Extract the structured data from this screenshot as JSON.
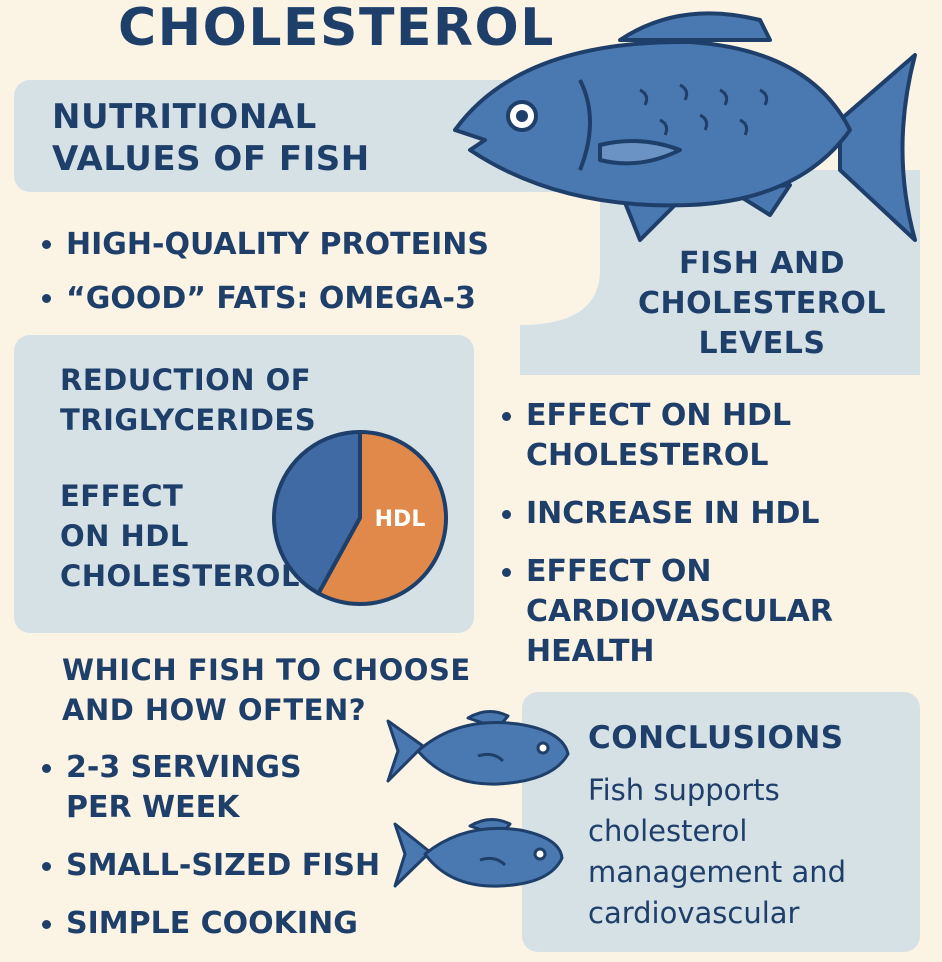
{
  "title": "CHOLESTEROL",
  "nutrition": {
    "heading_lines": [
      "NUTRITIONAL",
      "VALUES OF FISH"
    ],
    "items": [
      "HIGH-QUALITY PROTEINS",
      "“GOOD” FATS: OMEGA-3"
    ]
  },
  "levels": {
    "heading_lines": [
      "FISH AND",
      "CHOLESTEROL",
      "LEVELS"
    ]
  },
  "triglycerides": {
    "heading_lines": [
      "REDUCTION OF",
      "TRIGLYCERIDES"
    ]
  },
  "hdl_effect": {
    "heading_lines": [
      "EFFECT",
      "ON HDL",
      "CHOLESTEROL"
    ]
  },
  "pie": {
    "label": "HDL",
    "hdl_fraction": 0.58,
    "colors": {
      "hdl": "#e0894a",
      "other": "#3f6aa3",
      "outline": "#1f3f6b"
    }
  },
  "effects": {
    "items": [
      [
        "EFFECT ON HDL",
        "CHOLESTEROL"
      ],
      [
        "INCREASE IN HDL"
      ],
      [
        "EFFECT ON",
        "CARDIOVASCULAR",
        "HEALTH"
      ]
    ]
  },
  "choose": {
    "heading_lines": [
      "WHICH FISH TO CHOOSE",
      "AND HOW OFTEN?"
    ],
    "items": [
      [
        "2-3 SERVINGS",
        "PER WEEK"
      ],
      [
        "SMALL-SIZED FISH"
      ],
      [
        "SIMPLE COOKING"
      ]
    ]
  },
  "conclusions": {
    "heading": "CONCLUSIONS",
    "text_lines": [
      "Fish supports",
      "cholesterol",
      "management and",
      "cardiovascular"
    ]
  },
  "icons": [
    "large-fish-icon",
    "small-fish-icon",
    "small-fish-icon"
  ],
  "colors": {
    "background": "#fbf3e4",
    "panel": "#d6e1e6",
    "text": "#1f3f6b",
    "fish": "#4a78b0",
    "fish_dark": "#1f3f6b"
  }
}
